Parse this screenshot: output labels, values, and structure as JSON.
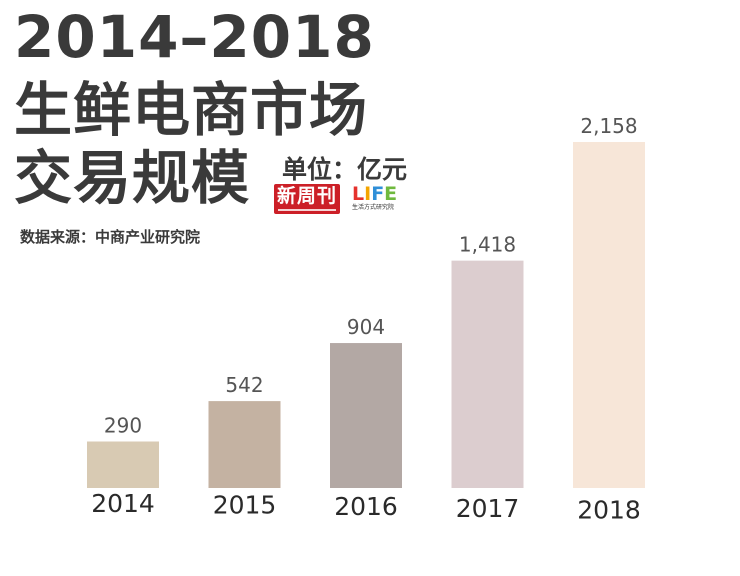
{
  "title": {
    "line1": "2014–2018",
    "line2": "生鲜电商市场",
    "line3": "交易规模"
  },
  "unit": "单位：亿元",
  "source": "数据来源：中商产业研究院",
  "logos": {
    "newsweekly": "新周刊",
    "life": "LIFE",
    "life_sub": "生活方式研究院"
  },
  "colors": {
    "bars": [
      "#d8cab3",
      "#c4b2a2",
      "#b3a8a4",
      "#dccdcf",
      "#f7e6d8"
    ],
    "life_letters": [
      "#e5322d",
      "#f4a500",
      "#2f8fd8",
      "#6fb93e"
    ]
  },
  "chart_data": {
    "type": "bar",
    "categories": [
      "2014",
      "2015",
      "2016",
      "2017",
      "2018"
    ],
    "values": [
      290,
      542,
      904,
      1418,
      2158
    ],
    "value_labels": [
      "290",
      "542",
      "904",
      "1,418",
      "2,158"
    ],
    "title": "2014–2018 生鲜电商市场交易规模",
    "ylabel": "单位：亿元",
    "ylim": [
      0,
      2158
    ],
    "grid": false,
    "legend": "none"
  }
}
